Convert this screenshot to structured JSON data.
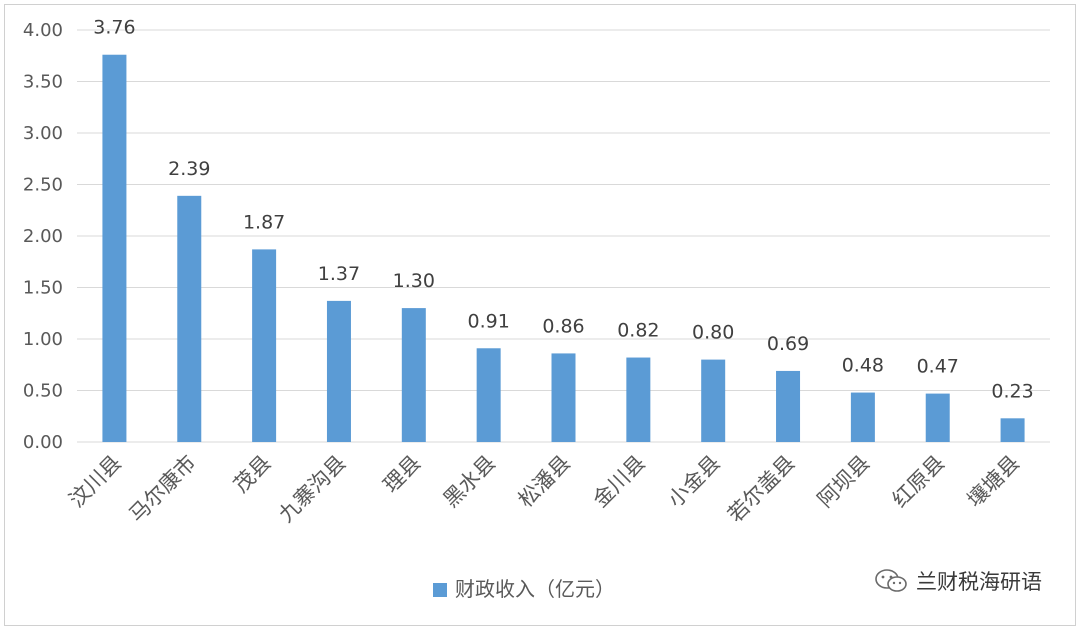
{
  "chart_data": {
    "type": "bar",
    "categories": [
      "汶川县",
      "马尔康市",
      "茂县",
      "九寨沟县",
      "理县",
      "黑水县",
      "松潘县",
      "金川县",
      "小金县",
      "若尔盖县",
      "阿坝县",
      "红原县",
      "壤塘县"
    ],
    "series": [
      {
        "name": "财政收入（亿元）",
        "values": [
          3.76,
          2.39,
          1.87,
          1.37,
          1.3,
          0.91,
          0.86,
          0.82,
          0.8,
          0.69,
          0.48,
          0.47,
          0.23
        ],
        "value_labels": [
          "3.76",
          "2.39",
          "1.87",
          "1.37",
          "1.30",
          "0.91",
          "0.86",
          "0.82",
          "0.80",
          "0.69",
          "0.48",
          "0.47",
          "0.23"
        ]
      }
    ],
    "ylim": [
      0,
      4.0
    ],
    "yticks": [
      "0.00",
      "0.50",
      "1.00",
      "1.50",
      "2.00",
      "2.50",
      "3.00",
      "3.50",
      "4.00"
    ],
    "ytick_values": [
      0,
      0.5,
      1.0,
      1.5,
      2.0,
      2.5,
      3.0,
      3.5,
      4.0
    ],
    "grid": true,
    "legend_position": "bottom-center",
    "bar_color": "#5b9bd5",
    "grid_color": "#d9d9d9"
  },
  "watermark": {
    "text": "兰财税海研语",
    "icon": "wechat-icon"
  }
}
